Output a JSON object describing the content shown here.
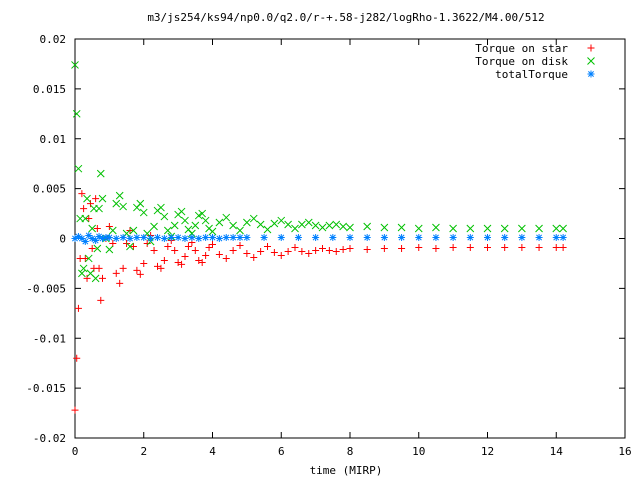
{
  "chart_data": {
    "type": "scatter",
    "title": "m3/js254/ks94/np0.0/q2.0/r-+.58-j282/logRho-1.3622/M4.00/512",
    "xlabel": "time (MIRP)",
    "ylabel": "",
    "xlim": [
      0,
      16
    ],
    "ylim": [
      -0.02,
      0.02
    ],
    "x_ticks": [
      0,
      2,
      4,
      6,
      8,
      10,
      12,
      14,
      16
    ],
    "x_tick_labels": [
      "0",
      "2",
      "4",
      "6",
      "8",
      "10",
      "12",
      "14",
      "16"
    ],
    "y_ticks": [
      -0.02,
      -0.015,
      -0.01,
      -0.005,
      0,
      0.005,
      0.01,
      0.015,
      0.02
    ],
    "y_tick_labels": [
      "-0.02",
      "-0.015",
      "-0.01",
      "-0.005",
      "0",
      "0.005",
      "0.01",
      "0.015",
      "0.02"
    ],
    "grid": false,
    "legend_position": "top-right",
    "series": [
      {
        "name": "Torque on star",
        "marker": "plus",
        "color": "#ff0000",
        "x": [
          0.0,
          0.05,
          0.1,
          0.15,
          0.2,
          0.25,
          0.3,
          0.35,
          0.4,
          0.45,
          0.5,
          0.55,
          0.6,
          0.65,
          0.7,
          0.75,
          0.8,
          0.9,
          1.0,
          1.1,
          1.2,
          1.3,
          1.4,
          1.5,
          1.6,
          1.7,
          1.8,
          1.9,
          2.0,
          2.1,
          2.2,
          2.3,
          2.4,
          2.5,
          2.6,
          2.7,
          2.8,
          2.9,
          3.0,
          3.1,
          3.2,
          3.3,
          3.4,
          3.5,
          3.6,
          3.7,
          3.8,
          3.9,
          4.0,
          4.2,
          4.4,
          4.6,
          4.8,
          5.0,
          5.2,
          5.4,
          5.6,
          5.8,
          6.0,
          6.2,
          6.4,
          6.6,
          6.8,
          7.0,
          7.2,
          7.4,
          7.6,
          7.8,
          8.0,
          8.5,
          9.0,
          9.5,
          10.0,
          10.5,
          11.0,
          11.5,
          12.0,
          12.5,
          13.0,
          13.5,
          14.0,
          14.2
        ],
        "y": [
          -0.0172,
          -0.012,
          -0.007,
          -0.002,
          0.0045,
          0.003,
          -0.002,
          -0.004,
          0.002,
          0.0035,
          -0.001,
          -0.003,
          0.004,
          0.001,
          -0.003,
          -0.0062,
          -0.004,
          0.0,
          0.0012,
          -0.0005,
          -0.0035,
          -0.0045,
          -0.003,
          -0.0005,
          0.0008,
          -0.0008,
          -0.0032,
          -0.0036,
          -0.0025,
          -0.0005,
          0.0003,
          -0.0012,
          -0.0028,
          -0.003,
          -0.0022,
          -0.0008,
          -0.0002,
          -0.0012,
          -0.0024,
          -0.0026,
          -0.0018,
          -0.0008,
          -0.0004,
          -0.0012,
          -0.0022,
          -0.0024,
          -0.0017,
          -0.0009,
          -0.0006,
          -0.0016,
          -0.002,
          -0.0012,
          -0.0007,
          -0.0015,
          -0.0019,
          -0.0013,
          -0.0008,
          -0.0014,
          -0.0017,
          -0.0013,
          -0.0009,
          -0.0013,
          -0.0015,
          -0.0012,
          -0.001,
          -0.0012,
          -0.0013,
          -0.0011,
          -0.001,
          -0.0011,
          -0.001,
          -0.001,
          -0.0009,
          -0.001,
          -0.0009,
          -0.0009,
          -0.0009,
          -0.0009,
          -0.0009,
          -0.0009,
          -0.0009,
          -0.0009
        ]
      },
      {
        "name": "Torque on disk",
        "marker": "cross",
        "color": "#00c000",
        "x": [
          0.0,
          0.05,
          0.1,
          0.15,
          0.2,
          0.25,
          0.3,
          0.35,
          0.4,
          0.45,
          0.5,
          0.55,
          0.6,
          0.65,
          0.7,
          0.75,
          0.8,
          0.9,
          1.0,
          1.1,
          1.2,
          1.3,
          1.4,
          1.5,
          1.6,
          1.7,
          1.8,
          1.9,
          2.0,
          2.1,
          2.2,
          2.3,
          2.4,
          2.5,
          2.6,
          2.7,
          2.8,
          2.9,
          3.0,
          3.1,
          3.2,
          3.3,
          3.4,
          3.5,
          3.6,
          3.7,
          3.8,
          3.9,
          4.0,
          4.2,
          4.4,
          4.6,
          4.8,
          5.0,
          5.2,
          5.4,
          5.6,
          5.8,
          6.0,
          6.2,
          6.4,
          6.6,
          6.8,
          7.0,
          7.2,
          7.4,
          7.6,
          7.8,
          8.0,
          8.5,
          9.0,
          9.5,
          10.0,
          10.5,
          11.0,
          11.5,
          12.0,
          12.5,
          13.0,
          13.5,
          14.0,
          14.2
        ],
        "y": [
          0.0174,
          0.0125,
          0.007,
          0.002,
          -0.0035,
          -0.003,
          0.002,
          0.004,
          -0.002,
          -0.0035,
          0.001,
          0.003,
          -0.004,
          -0.001,
          0.003,
          0.0065,
          0.004,
          0.0,
          -0.0011,
          0.0008,
          0.0035,
          0.0043,
          0.0032,
          0.0005,
          -0.0008,
          0.0008,
          0.0031,
          0.0035,
          0.0026,
          0.0005,
          -0.0003,
          0.0012,
          0.0028,
          0.0031,
          0.0022,
          0.0008,
          0.0002,
          0.0013,
          0.0024,
          0.0027,
          0.0018,
          0.0009,
          0.0005,
          0.0013,
          0.0023,
          0.0025,
          0.0018,
          0.001,
          0.0007,
          0.0016,
          0.0021,
          0.0013,
          0.0008,
          0.0016,
          0.002,
          0.0014,
          0.0009,
          0.0015,
          0.0018,
          0.0014,
          0.001,
          0.0014,
          0.0016,
          0.0013,
          0.0011,
          0.0013,
          0.0014,
          0.0012,
          0.0011,
          0.0012,
          0.0011,
          0.0011,
          0.001,
          0.0011,
          0.001,
          0.001,
          0.001,
          0.001,
          0.001,
          0.001,
          0.001,
          0.001
        ]
      },
      {
        "name": "totalTorque",
        "marker": "star",
        "color": "#0080ff",
        "x": [
          0.0,
          0.1,
          0.2,
          0.3,
          0.4,
          0.5,
          0.6,
          0.7,
          0.8,
          0.9,
          1.0,
          1.2,
          1.4,
          1.6,
          1.8,
          2.0,
          2.2,
          2.4,
          2.6,
          2.8,
          3.0,
          3.2,
          3.4,
          3.6,
          3.8,
          4.0,
          4.2,
          4.4,
          4.6,
          4.8,
          5.0,
          5.5,
          6.0,
          6.5,
          7.0,
          7.5,
          8.0,
          8.5,
          9.0,
          9.5,
          10.0,
          10.5,
          11.0,
          11.5,
          12.0,
          12.5,
          13.0,
          13.5,
          14.0,
          14.2
        ],
        "y": [
          0.0,
          0.0002,
          0.0,
          -0.0003,
          0.0003,
          0.0,
          -0.0002,
          0.0002,
          0.0,
          0.0001,
          0.0001,
          0.0,
          0.0001,
          0.0,
          0.0001,
          0.0001,
          0.0,
          0.0001,
          0.0,
          0.0001,
          0.0001,
          0.0,
          0.0001,
          0.0,
          0.0001,
          0.0001,
          0.0,
          0.0001,
          0.0001,
          0.0001,
          0.0001,
          0.0001,
          0.0001,
          0.0001,
          0.0001,
          0.0001,
          0.0001,
          0.0001,
          0.0001,
          0.0001,
          0.0001,
          0.0001,
          0.0001,
          0.0001,
          0.0001,
          0.0001,
          0.0001,
          0.0001,
          0.0001,
          0.0001
        ]
      }
    ]
  }
}
